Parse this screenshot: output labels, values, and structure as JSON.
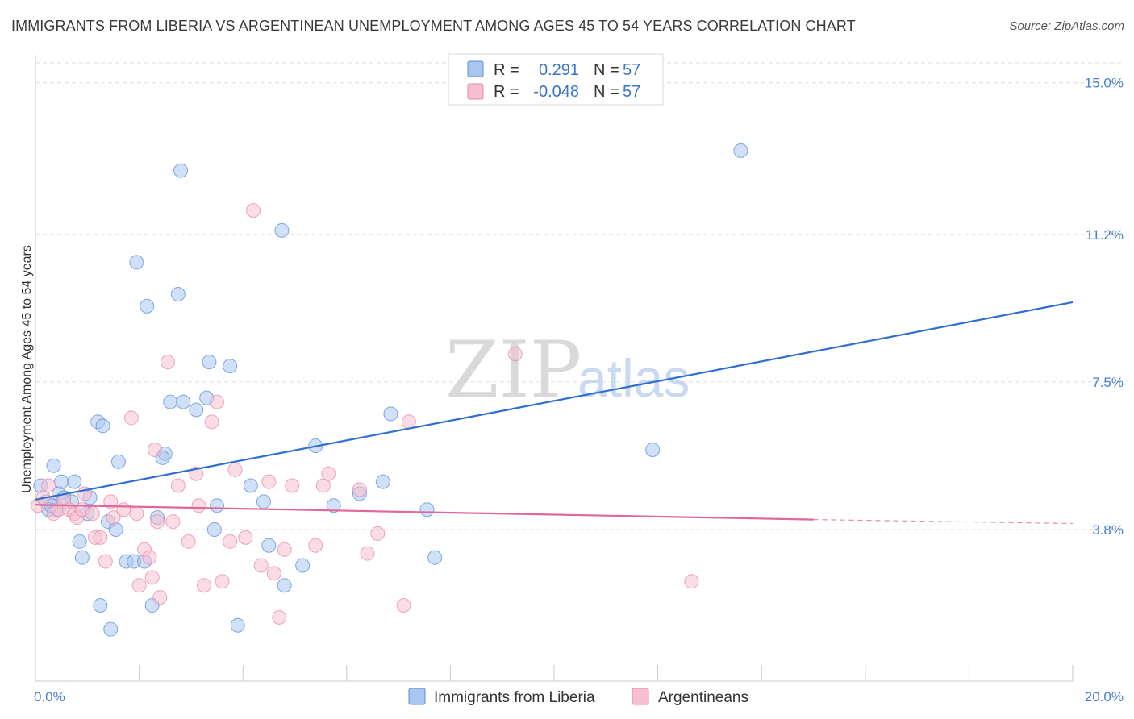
{
  "title": "IMMIGRANTS FROM LIBERIA VS ARGENTINEAN UNEMPLOYMENT AMONG AGES 45 TO 54 YEARS CORRELATION CHART",
  "source": "Source: ZipAtlas.com",
  "watermark": {
    "zip": "ZIP",
    "atlas": "atlas"
  },
  "legend_top": {
    "rows": [
      {
        "r_label": "R =",
        "r_value": "0.291",
        "n_label": "N =",
        "n_value": "57",
        "color": "#a9c6f0",
        "stroke": "#5b8fd6"
      },
      {
        "r_label": "R =",
        "r_value": "-0.048",
        "n_label": "N =",
        "n_value": "57",
        "color": "#f6bfd0",
        "stroke": "#e889a8"
      }
    ]
  },
  "legend_bottom": [
    {
      "label": "Immigrants from Liberia",
      "color": "#a9c6f0",
      "stroke": "#5b8fd6"
    },
    {
      "label": "Argentineans",
      "color": "#f6bfd0",
      "stroke": "#e889a8"
    }
  ],
  "chart_data": {
    "type": "scatter",
    "title": "IMMIGRANTS FROM LIBERIA VS ARGENTINEAN UNEMPLOYMENT AMONG AGES 45 TO 54 YEARS CORRELATION CHART",
    "xlabel": "",
    "ylabel": "Unemployment Among Ages 45 to 54 years",
    "xlim": [
      0,
      20
    ],
    "ylim": [
      0,
      15.5
    ],
    "x_tick_labels": [
      {
        "value": 0,
        "label": "0.0%"
      },
      {
        "value": 20,
        "label": "20.0%"
      }
    ],
    "y_tick_labels": [
      {
        "value": 3.8,
        "label": "3.8%"
      },
      {
        "value": 7.5,
        "label": "7.5%"
      },
      {
        "value": 11.2,
        "label": "11.2%"
      },
      {
        "value": 15.0,
        "label": "15.0%"
      }
    ],
    "grid": true,
    "series": [
      {
        "name": "Immigrants from Liberia",
        "color": "#5b8fd6",
        "fill": "#a9c6f0",
        "trend": {
          "x0": 0,
          "y0": 4.55,
          "x1": 20,
          "y1": 9.5,
          "dashed_from": null
        },
        "points": [
          [
            0.1,
            4.9
          ],
          [
            0.2,
            4.5
          ],
          [
            0.25,
            4.3
          ],
          [
            0.35,
            5.4
          ],
          [
            0.4,
            4.3
          ],
          [
            0.45,
            4.7
          ],
          [
            0.5,
            5.0
          ],
          [
            0.55,
            4.6
          ],
          [
            0.7,
            4.5
          ],
          [
            0.75,
            5.0
          ],
          [
            0.85,
            3.5
          ],
          [
            0.9,
            3.1
          ],
          [
            1.0,
            4.2
          ],
          [
            1.05,
            4.6
          ],
          [
            1.2,
            6.5
          ],
          [
            1.3,
            6.4
          ],
          [
            1.25,
            1.9
          ],
          [
            1.45,
            1.3
          ],
          [
            1.4,
            4.0
          ],
          [
            1.6,
            5.5
          ],
          [
            1.55,
            3.8
          ],
          [
            1.75,
            3.0
          ],
          [
            1.9,
            3.0
          ],
          [
            1.95,
            10.5
          ],
          [
            2.1,
            3.0
          ],
          [
            2.15,
            9.4
          ],
          [
            2.25,
            1.9
          ],
          [
            2.35,
            4.1
          ],
          [
            2.5,
            5.7
          ],
          [
            2.45,
            5.6
          ],
          [
            2.6,
            7.0
          ],
          [
            2.75,
            9.7
          ],
          [
            2.8,
            12.8
          ],
          [
            2.85,
            7.0
          ],
          [
            3.1,
            6.8
          ],
          [
            3.3,
            7.1
          ],
          [
            3.35,
            8.0
          ],
          [
            3.45,
            3.8
          ],
          [
            3.5,
            4.4
          ],
          [
            3.75,
            7.9
          ],
          [
            3.9,
            1.4
          ],
          [
            4.15,
            4.9
          ],
          [
            4.4,
            4.5
          ],
          [
            4.5,
            3.4
          ],
          [
            4.75,
            11.3
          ],
          [
            4.8,
            2.4
          ],
          [
            5.15,
            2.9
          ],
          [
            5.4,
            5.9
          ],
          [
            5.75,
            4.4
          ],
          [
            6.25,
            4.7
          ],
          [
            6.7,
            5.0
          ],
          [
            6.85,
            6.7
          ],
          [
            7.55,
            4.3
          ],
          [
            7.7,
            3.1
          ],
          [
            13.6,
            13.3
          ],
          [
            11.9,
            5.8
          ],
          [
            0.3,
            4.4
          ]
        ]
      },
      {
        "name": "Argentineans",
        "color": "#e889a8",
        "fill": "#f6bfd0",
        "trend": {
          "x0": 0,
          "y0": 4.42,
          "x1": 15.0,
          "y1": 4.05,
          "dashed_to": 20,
          "dashed_y1": 3.95
        },
        "points": [
          [
            0.05,
            4.4
          ],
          [
            0.15,
            4.6
          ],
          [
            0.25,
            4.9
          ],
          [
            0.35,
            4.2
          ],
          [
            0.45,
            4.3
          ],
          [
            0.55,
            4.5
          ],
          [
            0.65,
            4.3
          ],
          [
            0.75,
            4.2
          ],
          [
            0.8,
            4.1
          ],
          [
            0.9,
            4.3
          ],
          [
            0.95,
            4.7
          ],
          [
            1.1,
            4.2
          ],
          [
            1.15,
            3.6
          ],
          [
            1.25,
            3.6
          ],
          [
            1.35,
            3.0
          ],
          [
            1.45,
            4.5
          ],
          [
            1.5,
            4.1
          ],
          [
            1.7,
            4.3
          ],
          [
            1.85,
            6.6
          ],
          [
            1.95,
            4.2
          ],
          [
            2.0,
            2.4
          ],
          [
            2.1,
            3.3
          ],
          [
            2.2,
            3.1
          ],
          [
            2.25,
            2.6
          ],
          [
            2.3,
            5.8
          ],
          [
            2.35,
            4.0
          ],
          [
            2.4,
            2.1
          ],
          [
            2.55,
            8.0
          ],
          [
            2.65,
            4.0
          ],
          [
            2.75,
            4.9
          ],
          [
            2.95,
            3.5
          ],
          [
            3.1,
            5.2
          ],
          [
            3.15,
            4.4
          ],
          [
            3.25,
            2.4
          ],
          [
            3.4,
            6.5
          ],
          [
            3.5,
            7.0
          ],
          [
            3.6,
            2.5
          ],
          [
            3.75,
            3.5
          ],
          [
            3.85,
            5.3
          ],
          [
            4.05,
            3.6
          ],
          [
            4.2,
            11.8
          ],
          [
            4.35,
            2.9
          ],
          [
            4.5,
            5.0
          ],
          [
            4.6,
            2.7
          ],
          [
            4.7,
            1.6
          ],
          [
            4.8,
            3.3
          ],
          [
            4.95,
            4.9
          ],
          [
            5.4,
            3.4
          ],
          [
            5.55,
            4.9
          ],
          [
            5.65,
            5.2
          ],
          [
            6.25,
            4.8
          ],
          [
            6.4,
            3.2
          ],
          [
            6.6,
            3.7
          ],
          [
            7.1,
            1.9
          ],
          [
            7.2,
            6.5
          ],
          [
            9.25,
            8.2
          ],
          [
            12.65,
            2.5
          ]
        ]
      }
    ]
  }
}
